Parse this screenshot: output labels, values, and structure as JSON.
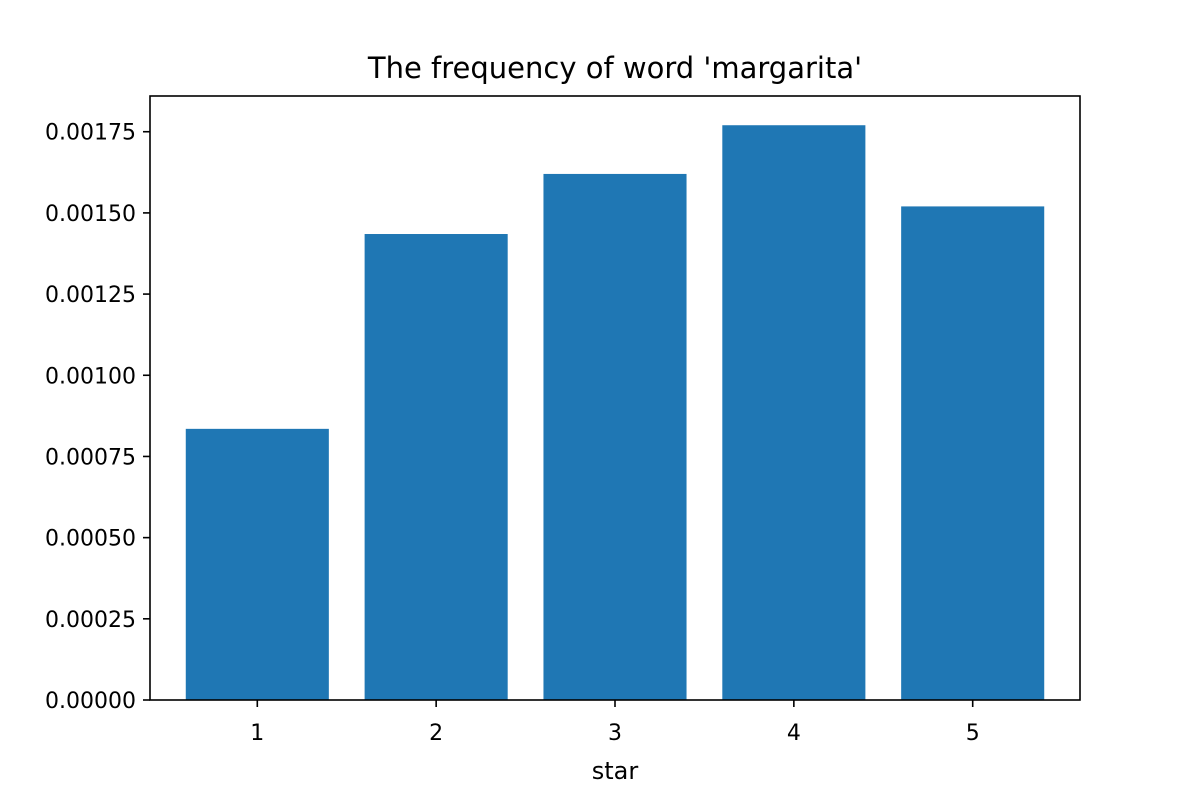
{
  "chart_data": {
    "type": "bar",
    "title": "The frequency of word 'margarita'",
    "xlabel": "star",
    "ylabel": "",
    "categories": [
      "1",
      "2",
      "3",
      "4",
      "5"
    ],
    "values": [
      0.000835,
      0.001435,
      0.00162,
      0.00177,
      0.00152
    ],
    "ylim": [
      0,
      0.00186
    ],
    "xlim": [
      0.4,
      5.6
    ],
    "yticks": [
      0,
      0.00025,
      0.0005,
      0.00075,
      0.001,
      0.00125,
      0.0015,
      0.00175
    ],
    "ytick_labels": [
      "0.00000",
      "0.00025",
      "0.00050",
      "0.00075",
      "0.00100",
      "0.00125",
      "0.00150",
      "0.00175"
    ],
    "bar_color": "#1f77b4",
    "grid": false,
    "legend": "none"
  }
}
